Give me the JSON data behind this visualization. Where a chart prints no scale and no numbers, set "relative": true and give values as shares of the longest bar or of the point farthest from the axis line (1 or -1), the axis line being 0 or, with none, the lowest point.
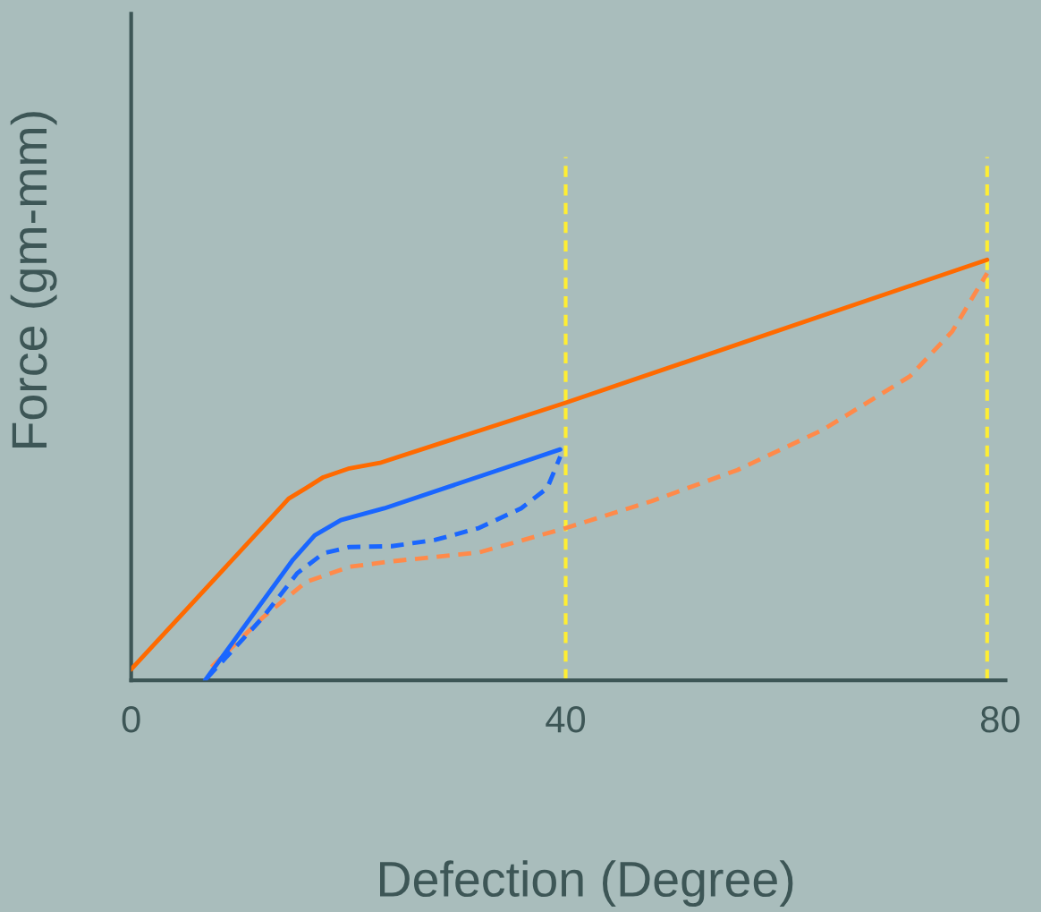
{
  "chart_data": {
    "type": "line",
    "xlabel": "Defection (Degree)",
    "ylabel": "Force (gm-mm)",
    "relative": true,
    "xlim": [
      0,
      80.5
    ],
    "xticks": [
      0,
      40,
      80
    ],
    "tick_labels": "x",
    "grid": false,
    "legend": false,
    "marker": "none",
    "series": [
      {
        "color": "#ff6a00",
        "line_style": "solid",
        "x": [
          0,
          12.9,
          14.5,
          16.1,
          17.7,
          20.1,
          22.9,
          40,
          78.8
        ],
        "values": [
          0.026,
          0.387,
          0.432,
          0.457,
          0.483,
          0.504,
          0.517,
          0.66,
          1.0
        ]
      },
      {
        "color": "#ff8a4a",
        "line_style": "dashed",
        "x": [
          7.4,
          12.1,
          16.1,
          20.1,
          24.0,
          32.0,
          40,
          47.9,
          55.8,
          63.7,
          71.7,
          75.6,
          78.8
        ],
        "values": [
          0.032,
          0.149,
          0.234,
          0.27,
          0.283,
          0.304,
          0.362,
          0.426,
          0.5,
          0.596,
          0.723,
          0.83,
          0.968
        ]
      },
      {
        "color": "#1a66ff",
        "line_style": "solid",
        "x": [
          6.8,
          14.9,
          16.9,
          19.3,
          23.3,
          39.5
        ],
        "values": [
          0.0,
          0.287,
          0.345,
          0.381,
          0.409,
          0.549
        ]
      },
      {
        "color": "#1a66ff",
        "line_style": "dashed",
        "x": [
          7.0,
          12.1,
          15.3,
          17.7,
          20.1,
          24.0,
          28.0,
          32.0,
          35.9,
          38.3,
          39.5
        ],
        "values": [
          0.006,
          0.149,
          0.255,
          0.302,
          0.317,
          0.319,
          0.334,
          0.362,
          0.409,
          0.457,
          0.532
        ]
      }
    ],
    "ref_lines": [
      {
        "axis": "x",
        "value": 40,
        "label": null,
        "color": "#ffee33",
        "line_style": "dashed"
      },
      {
        "axis": "x",
        "value": 78.8,
        "label": null,
        "color": "#ffee33",
        "line_style": "dashed"
      }
    ]
  }
}
